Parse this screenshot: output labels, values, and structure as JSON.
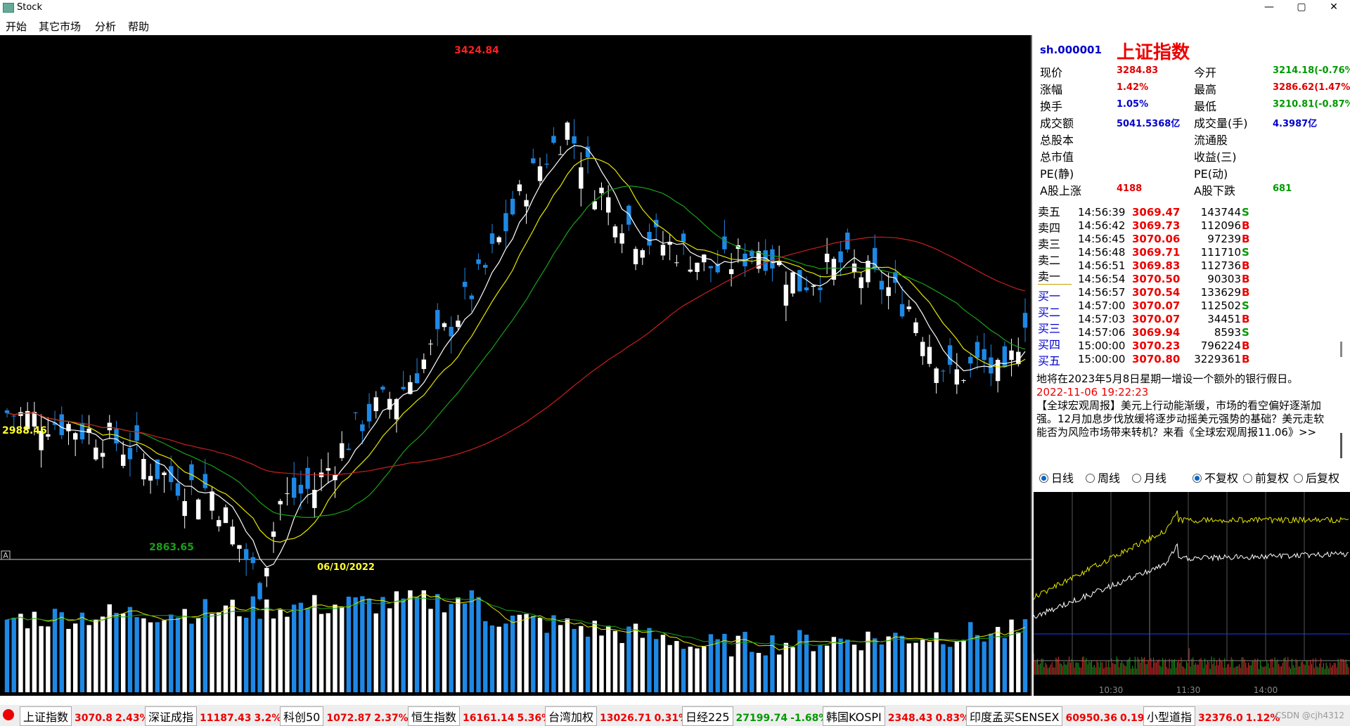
{
  "window": {
    "title": "Stock",
    "minimize": "—",
    "maximize": "▢",
    "close": "✕"
  },
  "menu": [
    "开始",
    "其它市场",
    "分析",
    "帮助"
  ],
  "main_chart": {
    "high_label": "3424.84",
    "low_label": "2863.65",
    "left_value": "2988.46",
    "date_label": "06/10/2022",
    "corner_label": "A"
  },
  "info": {
    "code": "sh.000001",
    "name": "上证指数",
    "rows": [
      {
        "l1": "现价",
        "v1": "3284.83",
        "c1": "#e00000",
        "l2": "今开",
        "v2": "3214.18(-0.76%)",
        "c2": "#009900"
      },
      {
        "l1": "涨幅",
        "v1": "1.42%",
        "c1": "#e00000",
        "l2": "最高",
        "v2": "3286.62(1.47%)",
        "c2": "#e00000"
      },
      {
        "l1": "换手",
        "v1": "1.05%",
        "c1": "#0000cc",
        "l2": "最低",
        "v2": "3210.81(-0.87%)",
        "c2": "#009900"
      },
      {
        "l1": "成交额",
        "v1": "5041.5368亿",
        "c1": "#0000cc",
        "l2": "成交量(手)",
        "v2": "4.3987亿",
        "c2": "#0000cc"
      },
      {
        "l1": "总股本",
        "v1": "",
        "c1": "#000000",
        "l2": "流通股",
        "v2": "",
        "c2": "#000000"
      },
      {
        "l1": "总市值",
        "v1": "",
        "c1": "#000000",
        "l2": "收益(三)",
        "v2": "",
        "c2": "#000000"
      },
      {
        "l1": "PE(静)",
        "v1": "",
        "c1": "#000000",
        "l2": "PE(动)",
        "v2": "",
        "c2": "#000000"
      },
      {
        "l1": "A股上涨",
        "v1": "4188",
        "c1": "#e00000",
        "l2": "A股下跌",
        "v2": "681",
        "c2": "#009900"
      }
    ]
  },
  "order_labels": [
    "卖五",
    "卖四",
    "卖三",
    "卖二",
    "卖一",
    "买一",
    "买二",
    "买三",
    "买四",
    "买五"
  ],
  "ticks": [
    {
      "time": "14:56:39",
      "price": "3069.47",
      "vol": "143744",
      "flag": "S"
    },
    {
      "time": "14:56:42",
      "price": "3069.73",
      "vol": "112096",
      "flag": "B"
    },
    {
      "time": "14:56:45",
      "price": "3070.06",
      "vol": "97239",
      "flag": "B"
    },
    {
      "time": "14:56:48",
      "price": "3069.71",
      "vol": "111710",
      "flag": "S"
    },
    {
      "time": "14:56:51",
      "price": "3069.83",
      "vol": "112736",
      "flag": "B"
    },
    {
      "time": "14:56:54",
      "price": "3070.50",
      "vol": "90303",
      "flag": "B"
    },
    {
      "time": "14:56:57",
      "price": "3070.54",
      "vol": "133629",
      "flag": "B"
    },
    {
      "time": "14:57:00",
      "price": "3070.07",
      "vol": "112502",
      "flag": "S"
    },
    {
      "time": "14:57:03",
      "price": "3070.07",
      "vol": "34451",
      "flag": "B"
    },
    {
      "time": "14:57:06",
      "price": "3069.94",
      "vol": "8593",
      "flag": "S"
    },
    {
      "time": "15:00:00",
      "price": "3070.23",
      "vol": "796224",
      "flag": "B"
    },
    {
      "time": "15:00:00",
      "price": "3070.80",
      "vol": "3229361",
      "flag": "B"
    }
  ],
  "news": {
    "line1": "地将在2023年5月8日星期一增设一个额外的银行假日。",
    "timestamp": "2022-11-06 19:22:23",
    "body": "【全球宏观周报】美元上行动能渐缓，市场的看空偏好逐渐加强。12月加息步伐放缓将逐步动摇美元强势的基础？美元走软能否为风险市场带来转机？来看《全球宏观周报11.06》>>"
  },
  "period_options": [
    "日线",
    "周线",
    "月线"
  ],
  "adjust_options": [
    "不复权",
    "前复权",
    "后复权"
  ],
  "intraday": {
    "times": [
      "10:30",
      "11:30",
      "14:00"
    ]
  },
  "status_bar": [
    {
      "name": "上证指数",
      "value": "3070.8",
      "change": "2.43%"
    },
    {
      "name": "深证成指",
      "value": "11187.43",
      "change": "3.2%"
    },
    {
      "name": "科创50",
      "value": "1072.87",
      "change": "2.37%"
    },
    {
      "name": "恒生指数",
      "value": "16161.14",
      "change": "5.36%"
    },
    {
      "name": "台湾加权",
      "value": "13026.71",
      "change": "0.31%"
    },
    {
      "name": "日经225",
      "value": "27199.74",
      "change": "-1.68%"
    },
    {
      "name": "韩国KOSPI",
      "value": "2348.43",
      "change": "0.83%"
    },
    {
      "name": "印度孟买SENSEX",
      "value": "60950.36",
      "change": "0.19%"
    },
    {
      "name": "小型道指",
      "value": "32376.0",
      "change": "1.12%"
    }
  ],
  "watermark": "CSDN @cjh4312",
  "colors": {
    "up": "#ffffff",
    "down": "#1e88e5",
    "ma_white": "#ffffff",
    "ma_yellow": "#e6e600",
    "ma_green": "#1aa01a",
    "ma_red": "#c81e1e",
    "price_up": "#e00000",
    "price_down": "#009900"
  }
}
